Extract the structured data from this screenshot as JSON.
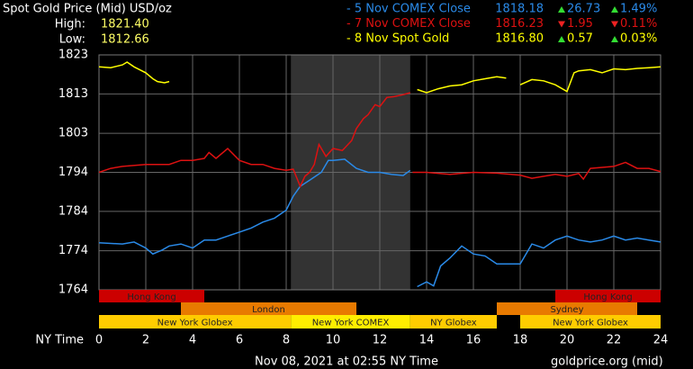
{
  "chart_data": {
    "type": "line",
    "title": "Spot Gold Price (Mid) USD/oz",
    "high_label": "High:",
    "high": "1821.40",
    "low_label": "Low:",
    "low": "1812.66",
    "x_label": "NY Time",
    "footer": "Nov 08, 2021 at 02:55 NY Time",
    "source": "goldprice.org (mid)",
    "xlim": [
      0,
      24
    ],
    "xticks": [
      0,
      2,
      4,
      6,
      8,
      10,
      12,
      14,
      16,
      18,
      20,
      22,
      24
    ],
    "ylim": [
      1764,
      1823
    ],
    "yticks": [
      1764,
      {
        "value": 1773.8,
        "label": "1774"
      },
      {
        "value": 1783.7,
        "label": "1784"
      },
      {
        "value": 1793.5,
        "label": "1794"
      },
      {
        "value": 1803.3,
        "label": "1803"
      },
      {
        "value": 1813.2,
        "label": "1813"
      },
      1823
    ],
    "grid": true,
    "shaded_x": [
      8.2,
      13.3
    ],
    "series": [
      {
        "name": "- 5 Nov COMEX Close",
        "color": "#2a8ae8",
        "close": 1818.18,
        "change": 26.73,
        "change_pct": "1.49%",
        "direction": "up",
        "x": [
          0,
          1,
          1.5,
          2,
          2.3,
          2.7,
          3,
          3.5,
          4,
          4.5,
          5,
          5.5,
          6,
          6.5,
          7,
          7.5,
          8,
          8.3,
          8.6,
          9,
          9.5,
          9.8,
          10,
          10.5,
          11,
          11.5,
          12,
          12.5,
          13,
          13.3,
          13.45,
          13.6,
          14,
          14.3,
          14.6,
          15,
          15.5,
          16,
          16.5,
          17,
          18,
          18.5,
          19,
          19.5,
          20,
          20.5,
          21,
          21.5,
          22,
          22.5,
          23,
          23.5,
          24
        ],
        "values": [
          1775.8,
          1775.5,
          1776,
          1774.5,
          1773,
          1774,
          1775,
          1775.5,
          1774.5,
          1776.5,
          1776.5,
          1777.5,
          1778.5,
          1779.5,
          1781,
          1782,
          1784,
          1787.5,
          1790,
          1791.5,
          1793.5,
          1796.5,
          1796.5,
          1796.8,
          1794.5,
          1793.5,
          1793.5,
          1793,
          1792.7,
          1794,
          null,
          1764.8,
          1766,
          1765,
          1770,
          1772,
          1775,
          1773,
          1772.5,
          1770.5,
          1770.5,
          1775.5,
          1774.5,
          1776.5,
          1777.5,
          1776.5,
          1776,
          1776.5,
          1777.5,
          1776.5,
          1777,
          1776.5,
          1776
        ]
      },
      {
        "name": "- 7 Nov COMEX Close",
        "color": "#dd1111",
        "close": 1816.23,
        "change": 1.95,
        "change_pct": "0.11%",
        "direction": "down",
        "x": [
          0,
          0.5,
          1,
          2,
          3,
          3.5,
          4,
          4.5,
          4.7,
          5,
          5.5,
          6,
          6.5,
          7,
          7.5,
          8,
          8.3,
          8.6,
          8.8,
          9,
          9.2,
          9.4,
          9.7,
          10,
          10.4,
          10.8,
          11,
          11.3,
          11.5,
          11.8,
          12,
          12.3,
          12.6,
          13,
          13.3,
          13.35,
          13.4,
          14,
          15,
          16,
          17,
          18,
          18.5,
          19,
          19.5,
          20,
          20.5,
          20.7,
          21,
          22,
          22.5,
          23,
          23.5,
          24
        ],
        "values": [
          1793.5,
          1794.5,
          1795,
          1795.5,
          1795.5,
          1796.5,
          1796.5,
          1797,
          1798.5,
          1797,
          1799.5,
          1796.5,
          1795.5,
          1795.5,
          1794.5,
          1794,
          1794.3,
          1790,
          1792.5,
          1793.5,
          1795.5,
          1800.5,
          1797.5,
          1799.5,
          1799,
          1801.5,
          1804.5,
          1807,
          1808,
          1810.5,
          1810,
          1812.3,
          1812.5,
          1813,
          1813.5,
          null,
          1793.5,
          1793.5,
          1793,
          1793.5,
          1793.3,
          1792.8,
          1792,
          1792.5,
          1793,
          1792.5,
          1793.2,
          1791.8,
          1794.5,
          1795,
          1796,
          1794.5,
          1794.5,
          1793.7
        ]
      },
      {
        "name": "- 8 Nov Spot Gold",
        "color": "#ffff00",
        "close": "1816.80",
        "change": 0.57,
        "change_pct": "0.03%",
        "direction": "up",
        "x": [
          0,
          0.5,
          1,
          1.2,
          1.5,
          2,
          2.3,
          2.5,
          2.8,
          3,
          8,
          13.6,
          14,
          14.5,
          15,
          15.5,
          16,
          16.5,
          17,
          17.4,
          17.7,
          18,
          18.5,
          19,
          19.5,
          20,
          20.3,
          20.5,
          21,
          21.5,
          22,
          22.5,
          23,
          23.5,
          24
        ],
        "values": [
          1820,
          1819.8,
          1820.5,
          1821.2,
          1820,
          1818.5,
          1817,
          1816.3,
          1816,
          1816.3,
          null,
          1814.3,
          1813.5,
          1814.5,
          1815.2,
          1815.5,
          1816.5,
          1817,
          1817.5,
          1817.2,
          null,
          1815.5,
          1816.8,
          1816.5,
          1815.5,
          1813.8,
          1818.5,
          1819,
          1819.3,
          1818.5,
          1819.5,
          1819.3,
          1819.6,
          1819.8,
          1820
        ]
      }
    ],
    "sessions": [
      {
        "label": "Hong Kong",
        "start": 0,
        "end": 4.5,
        "row": 0,
        "color": "#cc0000"
      },
      {
        "label": "Hong Kong",
        "start": 19.5,
        "end": 24,
        "row": 0,
        "color": "#cc0000"
      },
      {
        "label": "London",
        "start": 3.5,
        "end": 11,
        "row": 1,
        "color": "#e87a00"
      },
      {
        "label": "Sydney",
        "start": 17,
        "end": 23,
        "row": 1,
        "color": "#e87a00"
      },
      {
        "label": "New York Globex",
        "start": 0,
        "end": 8.2,
        "row": 2,
        "color": "#ffcc00"
      },
      {
        "label": "New York COMEX",
        "start": 8.2,
        "end": 13.3,
        "row": 2,
        "color": "#ffee00"
      },
      {
        "label": "NY Globex",
        "start": 13.3,
        "end": 17,
        "row": 2,
        "color": "#ffcc00"
      },
      {
        "label": "New York Globex",
        "start": 18,
        "end": 24,
        "row": 2,
        "color": "#ffcc00"
      }
    ]
  }
}
